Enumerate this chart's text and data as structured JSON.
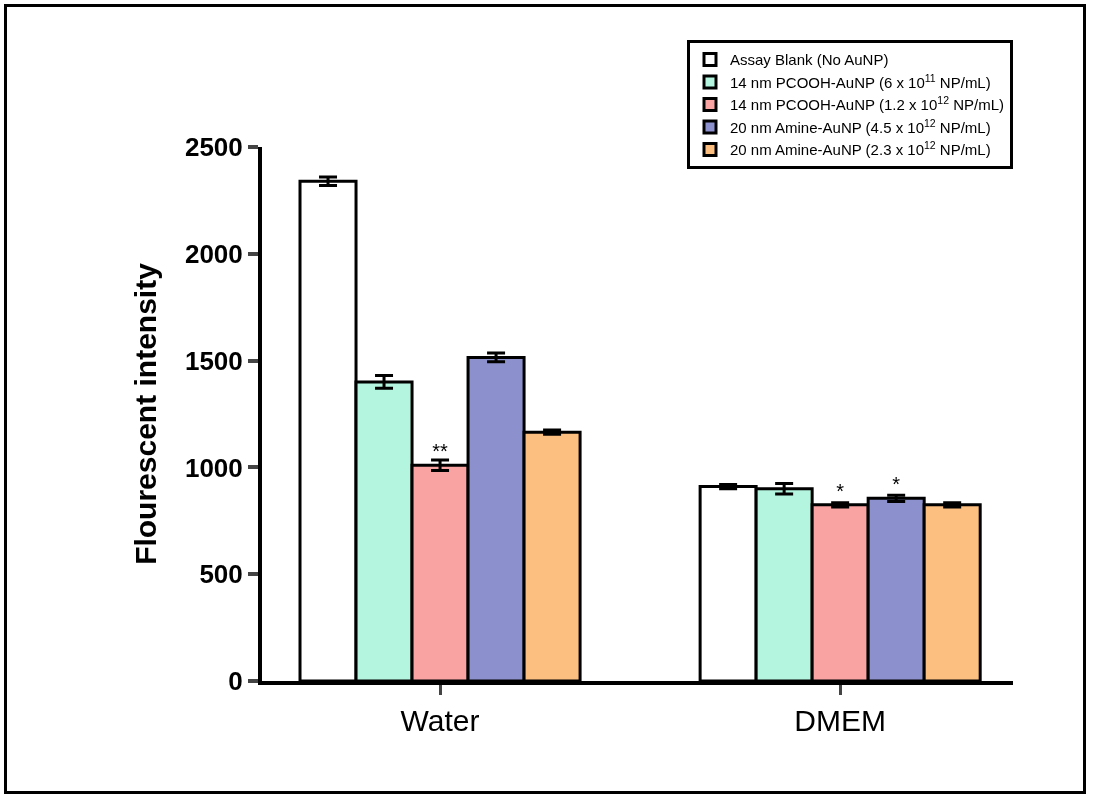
{
  "chart_data": {
    "type": "bar",
    "ylabel": "Flourescent intensity",
    "categories": [
      "Water",
      "DMEM"
    ],
    "series": [
      {
        "name": "Assay Blank (No AuNP)",
        "color": "#ffffff",
        "values": [
          2340,
          910
        ],
        "errors": [
          20,
          10
        ]
      },
      {
        "name": "14 nm PCOOH-AuNP (6 x 10$^{11}$ NP/mL)",
        "color": "#b3f5de",
        "values": [
          1400,
          900
        ],
        "errors": [
          30,
          25
        ]
      },
      {
        "name": "14 nm PCOOH-AuNP (1.2 x 10$^{12}$ NP/mL)",
        "color": "#f9a3a3",
        "values": [
          1010,
          825
        ],
        "errors": [
          25,
          10
        ],
        "value_labels": [
          "**",
          "*"
        ]
      },
      {
        "name": "20 nm Amine-AuNP (4.5 x 10$^{12}$ NP/mL)",
        "color": "#8c91cd",
        "values": [
          1515,
          855
        ],
        "errors": [
          20,
          15
        ],
        "value_labels": [
          null,
          "*"
        ]
      },
      {
        "name": "20 nm Amine-AuNP (2.3 x 10$^{12}$ NP/mL)",
        "color": "#fdbf80",
        "values": [
          1165,
          825
        ],
        "errors": [
          10,
          10
        ]
      }
    ],
    "ylim": [
      0,
      2500
    ],
    "yticks": [
      0,
      500,
      1000,
      1500,
      2000,
      2500
    ],
    "grid": false,
    "legend": "top right"
  }
}
